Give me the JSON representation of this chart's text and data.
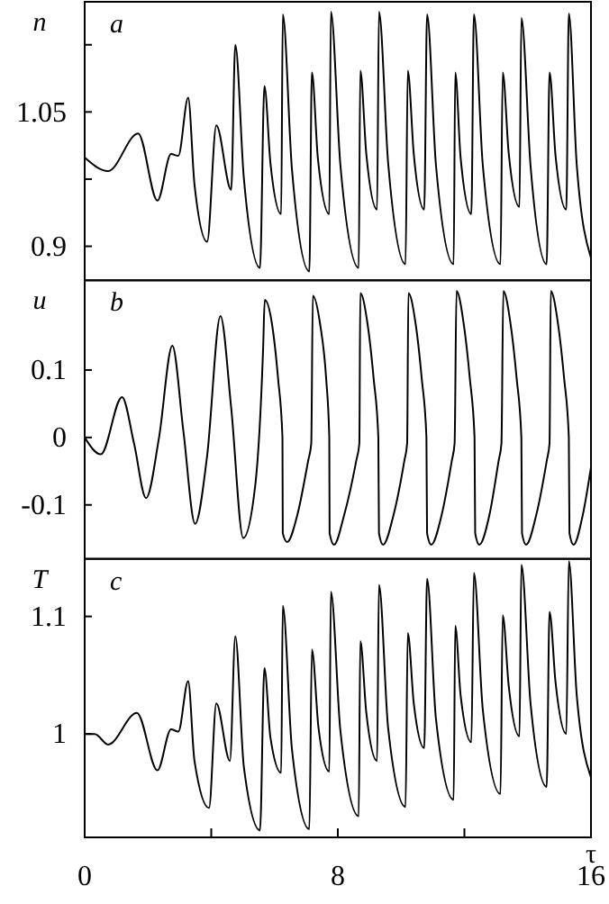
{
  "chart_data": [
    {
      "type": "line",
      "title": "a",
      "ylabel": "n",
      "xlim": [
        0,
        16
      ],
      "ylim": [
        0.862,
        1.173
      ],
      "yticks": [
        {
          "value": 0.975,
          "label": null
        },
        0.9,
        1.05,
        {
          "value": 1.125,
          "label": null
        }
      ],
      "tick_labels": "y",
      "x": [
        0,
        0.74,
        1.69,
        2.3,
        2.73,
        2.96,
        3.27,
        3.47,
        3.87,
        4.16,
        4.63,
        4.76,
        5.03,
        5.54,
        5.68,
        5.87,
        6.21,
        6.26,
        6.55,
        7.1,
        7.18,
        7.37,
        7.73,
        7.78,
        8.08,
        8.66,
        8.71,
        8.9,
        9.24,
        9.3,
        9.59,
        10.14,
        10.21,
        10.4,
        10.73,
        10.82,
        11.1,
        11.66,
        11.71,
        11.88,
        12.22,
        12.3,
        12.58,
        13.14,
        13.21,
        13.4,
        13.74,
        13.8,
        14.09,
        14.6,
        14.69,
        14.88,
        15.22,
        15.3,
        15.55,
        16.0
      ],
      "series": [
        {
          "color": "#000000",
          "values": [
            0.999,
            0.984,
            1.026,
            0.951,
            1.003,
            1.001,
            1.066,
            0.969,
            0.905,
            1.035,
            0.963,
            1.125,
            0.976,
            0.876,
            1.079,
            0.993,
            0.936,
            1.159,
            0.986,
            0.872,
            1.094,
            0.998,
            0.936,
            1.162,
            0.991,
            0.876,
            1.096,
            1.003,
            0.941,
            1.162,
            0.993,
            0.88,
            1.096,
            1.003,
            0.941,
            1.159,
            0.991,
            0.88,
            1.094,
            0.999,
            0.936,
            1.159,
            0.991,
            0.88,
            1.094,
            1.004,
            0.944,
            1.155,
            0.99,
            0.88,
            1.094,
            1.001,
            0.941,
            1.16,
            0.991,
            0.887
          ]
        }
      ]
    },
    {
      "type": "line",
      "title": "b",
      "ylabel": "u",
      "xlim": [
        0,
        16
      ],
      "ylim": [
        -0.18,
        0.233
      ],
      "yticks": [
        -0.1,
        0,
        0.1
      ],
      "tick_labels": "y",
      "x": [
        0,
        0.51,
        1.18,
        1.56,
        1.94,
        2.35,
        2.77,
        3.12,
        3.49,
        3.87,
        4.29,
        4.63,
        5.01,
        5.39,
        5.64,
        5.69,
        5.92,
        6.11,
        6.25,
        6.26,
        6.4,
        6.72,
        7.06,
        7.16,
        7.21,
        7.44,
        7.63,
        7.73,
        7.74,
        7.88,
        8.2,
        8.58,
        8.68,
        8.71,
        8.94,
        9.13,
        9.28,
        9.3,
        9.43,
        9.76,
        10.1,
        10.19,
        10.23,
        10.46,
        10.65,
        10.8,
        10.82,
        10.95,
        11.28,
        11.6,
        11.69,
        11.75,
        11.98,
        12.17,
        12.32,
        12.34,
        12.47,
        12.79,
        13.08,
        13.17,
        13.23,
        13.46,
        13.65,
        13.8,
        13.82,
        13.95,
        14.27,
        14.6,
        14.69,
        14.73,
        14.96,
        15.15,
        15.3,
        15.32,
        15.45,
        15.74,
        16.0
      ],
      "series": [
        {
          "color": "#000000",
          "values": [
            0,
            -0.025,
            0.06,
            -0.009,
            -0.09,
            0.0,
            0.136,
            0.009,
            -0.128,
            -0.027,
            0.18,
            0.044,
            -0.149,
            -0.071,
            0.133,
            0.204,
            0.168,
            0.088,
            0,
            -0.142,
            -0.155,
            -0.115,
            -0.035,
            -0.009,
            0.21,
            0.168,
            0.088,
            0,
            -0.142,
            -0.159,
            -0.115,
            -0.035,
            -0.009,
            0.214,
            0.168,
            0.088,
            0,
            -0.142,
            -0.159,
            -0.115,
            -0.035,
            -0.009,
            0.214,
            0.168,
            0.088,
            0,
            -0.142,
            -0.159,
            -0.115,
            -0.035,
            -0.009,
            0.217,
            0.168,
            0.088,
            0,
            -0.142,
            -0.159,
            -0.115,
            -0.035,
            -0.009,
            0.217,
            0.168,
            0.088,
            0,
            -0.142,
            -0.159,
            -0.115,
            -0.035,
            -0.009,
            0.217,
            0.168,
            0.088,
            0,
            -0.142,
            -0.159,
            -0.115,
            -0.044
          ]
        }
      ]
    },
    {
      "type": "line",
      "title": "c",
      "ylabel": "T",
      "xlabel": "τ",
      "xlim": [
        0,
        16
      ],
      "ylim": [
        0.912,
        1.149
      ],
      "xticks": [
        0,
        {
          "value": 4,
          "label": null
        },
        8,
        {
          "value": 12,
          "label": null
        },
        16
      ],
      "yticks": [
        1,
        1.1
      ],
      "x": [
        0,
        0.32,
        0.74,
        1.65,
        2.3,
        2.73,
        2.96,
        3.27,
        3.47,
        3.93,
        4.16,
        4.59,
        4.76,
        5.03,
        5.54,
        5.68,
        5.87,
        6.21,
        6.26,
        6.55,
        7.1,
        7.18,
        7.39,
        7.73,
        7.78,
        8.08,
        8.66,
        8.71,
        8.9,
        9.24,
        9.3,
        9.59,
        10.14,
        10.21,
        10.4,
        10.73,
        10.82,
        11.1,
        11.66,
        11.71,
        11.88,
        12.22,
        12.3,
        12.58,
        13.14,
        13.21,
        13.4,
        13.74,
        13.8,
        14.09,
        14.6,
        14.69,
        14.88,
        15.22,
        15.3,
        15.55,
        16.0
      ],
      "series": [
        {
          "color": "#000000",
          "values": [
            1.0,
            1.0,
            0.991,
            1.018,
            0.969,
            1.004,
            1.002,
            1.045,
            0.977,
            0.937,
            1.026,
            0.977,
            1.083,
            0.972,
            0.918,
            1.056,
            0.997,
            0.967,
            1.109,
            0.987,
            0.919,
            1.072,
            1.005,
            0.968,
            1.121,
            1.003,
            0.93,
            1.079,
            1.018,
            0.977,
            1.127,
            1.005,
            0.938,
            1.086,
            1.026,
            0.988,
            1.132,
            1.013,
            0.944,
            1.092,
            1.033,
            0.993,
            1.137,
            1.021,
            0.949,
            1.101,
            1.041,
            0.998,
            1.144,
            1.026,
            0.955,
            1.104,
            1.044,
            1.0,
            1.147,
            1.033,
            0.963
          ]
        }
      ]
    }
  ]
}
